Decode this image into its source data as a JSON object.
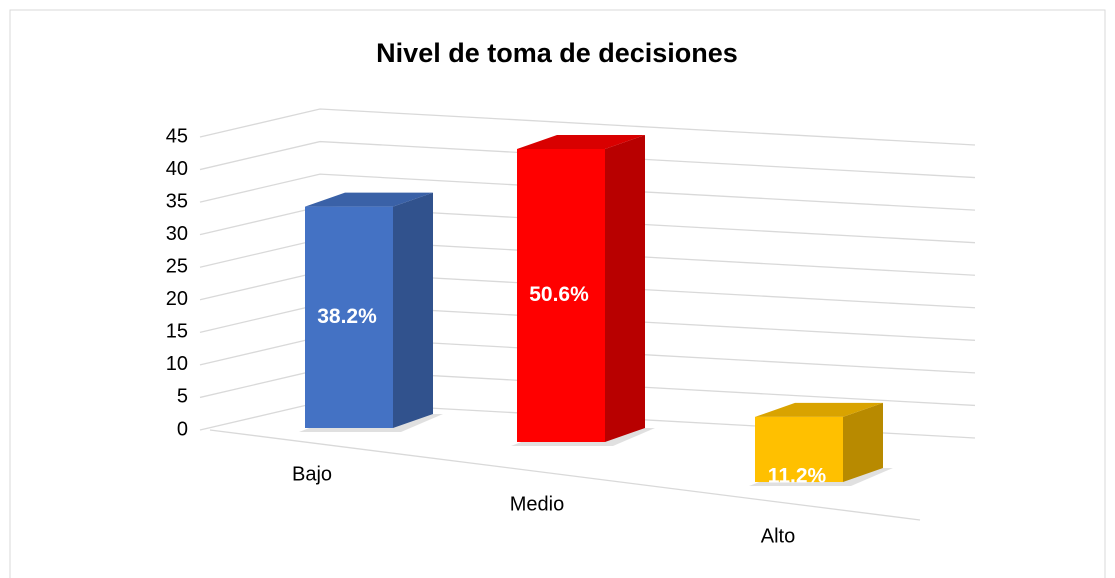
{
  "chart_data": {
    "type": "bar3d",
    "title": "Nivel de toma de decisiones",
    "categories": [
      "Bajo",
      "Medio",
      "Alto"
    ],
    "values": [
      34,
      45,
      10
    ],
    "data_labels": [
      "38.2%",
      "50.6%",
      "11.2%"
    ],
    "colors": [
      "#4472c4",
      "#ff0000",
      "#ffc000"
    ],
    "ylim": [
      0,
      45
    ],
    "yticks": [
      0,
      5,
      10,
      15,
      20,
      25,
      30,
      35,
      40,
      45
    ],
    "grid": true
  }
}
